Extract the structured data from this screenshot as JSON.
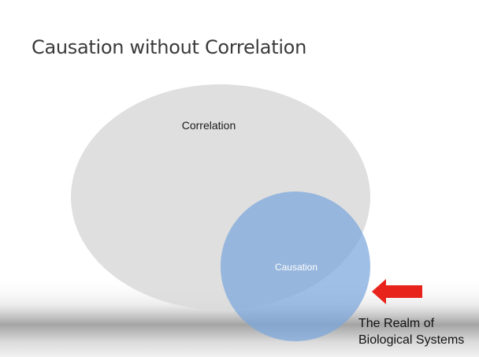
{
  "slide": {
    "title": "Causation without Correlation"
  },
  "diagram": {
    "correlation_label": "Correlation",
    "causation_label": "Causation",
    "callout_line1": "The Realm of",
    "callout_line2": "Biological Systems",
    "colors": {
      "correlation_fill": "#d9d9d9",
      "causation_fill": "#7aa6dc",
      "arrow": "#e8231c",
      "title_text": "#3a3a3a"
    }
  }
}
